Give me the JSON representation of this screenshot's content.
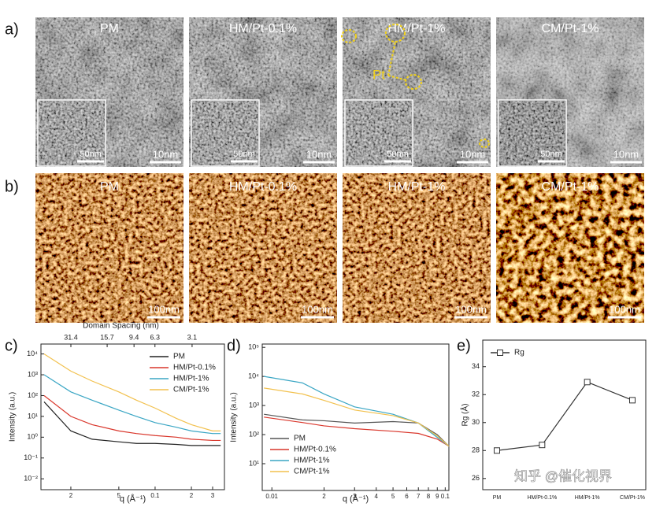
{
  "panel_labels": [
    "a)",
    "b)",
    "c)",
    "d)",
    "e)"
  ],
  "tem": [
    {
      "label": "PM",
      "scale": "10nm",
      "inset_scale": "50nm"
    },
    {
      "label": "HM/Pt-0.1%",
      "scale": "10nm",
      "inset_scale": "50nm"
    },
    {
      "label": "HM/Pt-1%",
      "scale": "10nm",
      "inset_scale": "50nm",
      "annotation": "Pt"
    },
    {
      "label": "CM/Pt-1%",
      "scale": "10nm",
      "inset_scale": "50nm"
    }
  ],
  "afm": [
    {
      "label": "PM",
      "scale": "100nm"
    },
    {
      "label": "HM/Pt-0.1%",
      "scale": "100nm"
    },
    {
      "label": "HM/Pt-1%",
      "scale": "100nm"
    },
    {
      "label": "CM/Pt-1%",
      "scale": "100nm"
    }
  ],
  "chart_data": [
    {
      "type": "line",
      "x_label": "q (Å⁻¹)",
      "y_label": "Intensity (a.u.)",
      "x2_label": "Domain Spacing (nm)",
      "x2ticks": [
        31.4,
        15.7,
        9.4,
        6.3,
        3.1
      ],
      "xscale": "log",
      "yscale": "log",
      "legend": "upper right",
      "xlim": [
        0.0113,
        0.376
      ],
      "ylim": [
        0.003,
        30000
      ],
      "xticks": [
        {
          "value": 0.02,
          "label": "2"
        },
        {
          "value": 0.05,
          "label": "5"
        },
        0.1,
        {
          "value": 0.2,
          "label": "2"
        },
        {
          "value": 0.3,
          "label": "3"
        }
      ],
      "yticks": [
        {
          "value": 0.01,
          "label": "10⁻²"
        },
        {
          "value": 0.1,
          "label": "10⁻¹"
        },
        {
          "value": 1,
          "label": "10⁰"
        },
        {
          "value": 10,
          "label": "10¹"
        },
        {
          "value": 100,
          "label": "10²"
        },
        {
          "value": 1000,
          "label": "10³"
        },
        {
          "value": 10000,
          "label": "10⁴"
        }
      ],
      "x": [
        0.012,
        0.02,
        0.03,
        0.05,
        0.07,
        0.1,
        0.15,
        0.2,
        0.3,
        0.35
      ],
      "series": [
        {
          "name": "PM",
          "color": "#222222",
          "values": [
            50,
            2,
            0.8,
            0.6,
            0.5,
            0.5,
            0.45,
            0.4,
            0.4,
            0.4
          ]
        },
        {
          "name": "HM/Pt-0.1%",
          "color": "#d9362b",
          "values": [
            100,
            10,
            4,
            2,
            1.5,
            1.2,
            1,
            0.8,
            0.7,
            0.7
          ]
        },
        {
          "name": "HM/Pt-1%",
          "color": "#3aa6c4",
          "values": [
            1000,
            150,
            60,
            20,
            10,
            5,
            3,
            2,
            1.5,
            1.5
          ]
        },
        {
          "name": "CM/Pt-1%",
          "color": "#f2c14e",
          "values": [
            10000,
            1500,
            500,
            150,
            60,
            25,
            8,
            4,
            2,
            2
          ]
        }
      ]
    },
    {
      "type": "line",
      "x_label": "q (Å⁻¹)",
      "y_label": "Intensity (a.u.)",
      "xscale": "log",
      "yscale": "log",
      "legend": "lower left",
      "xlim": [
        0.0088,
        0.105
      ],
      "ylim": [
        1.2,
        130000
      ],
      "xticks": [
        0.01,
        {
          "value": 0.02,
          "label": "2"
        },
        {
          "value": 0.03,
          "label": "3"
        },
        {
          "value": 0.04,
          "label": "4"
        },
        {
          "value": 0.05,
          "label": "5"
        },
        {
          "value": 0.06,
          "label": "6"
        },
        {
          "value": 0.07,
          "label": "7"
        },
        {
          "value": 0.08,
          "label": "8"
        },
        {
          "value": 0.09,
          "label": "9"
        },
        0.1
      ],
      "yticks": [
        {
          "value": 10,
          "label": "10¹"
        },
        {
          "value": 100,
          "label": "10²"
        },
        {
          "value": 1000,
          "label": "10³"
        },
        {
          "value": 10000,
          "label": "10⁴"
        },
        {
          "value": 100000,
          "label": "10⁵"
        }
      ],
      "x": [
        0.009,
        0.015,
        0.02,
        0.03,
        0.05,
        0.07,
        0.09,
        0.105
      ],
      "series": [
        {
          "name": "PM",
          "color": "#555555",
          "values": [
            500,
            320,
            300,
            250,
            280,
            250,
            100,
            40
          ]
        },
        {
          "name": "HM/Pt-0.1%",
          "color": "#d9362b",
          "values": [
            400,
            260,
            200,
            160,
            130,
            110,
            70,
            40
          ]
        },
        {
          "name": "HM/Pt-1%",
          "color": "#3aa6c4",
          "values": [
            10000,
            6000,
            2500,
            900,
            500,
            250,
            80,
            40
          ]
        },
        {
          "name": "CM/Pt-1%",
          "color": "#f2c14e",
          "values": [
            4000,
            2500,
            1500,
            700,
            450,
            250,
            90,
            40
          ]
        }
      ]
    },
    {
      "type": "line",
      "y_label": "Rg (Å)",
      "legend": "upper left",
      "marker": "square",
      "categories": [
        "PM",
        "HM/Pt-0.1%",
        "HM/Pt-1%",
        "CM/Pt-1%"
      ],
      "ylim": [
        25.2,
        35.9
      ],
      "yticks": [
        26,
        28,
        30,
        32,
        34
      ],
      "series": [
        {
          "name": "Rg",
          "color": "#333333",
          "values": [
            28.0,
            28.4,
            32.9,
            31.6
          ]
        }
      ]
    }
  ],
  "watermark": "知乎 @催化视界"
}
